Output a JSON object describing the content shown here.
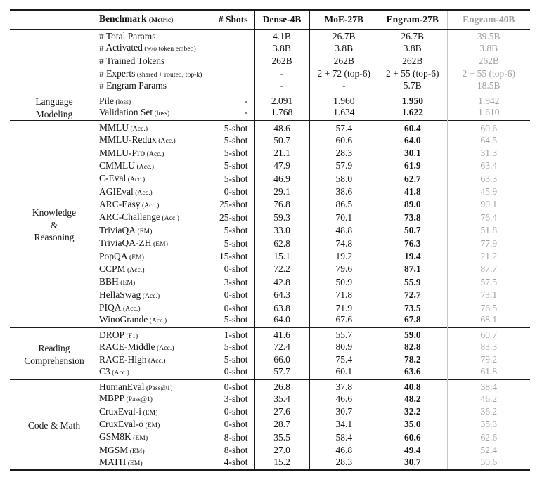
{
  "header": {
    "benchmark_label": "Benchmark",
    "metric_note": "(Metric)",
    "shots_label": "# Shots",
    "models": [
      {
        "name": "Dense-4B"
      },
      {
        "name": "MoE-27B"
      },
      {
        "name": "Engram-27B"
      },
      {
        "name": "Engram-40B",
        "muted": true
      }
    ]
  },
  "sections": [
    {
      "group_lines": [],
      "bold_engram": false,
      "rows": [
        {
          "benchmark": "# Total Params",
          "note": "",
          "shots": "",
          "values": [
            "4.1B",
            "26.7B",
            "26.7B",
            "39.5B"
          ]
        },
        {
          "benchmark": "# Activated",
          "note": "(w/o token embed)",
          "shots": "",
          "values": [
            "3.8B",
            "3.8B",
            "3.8B",
            "3.8B"
          ]
        },
        {
          "benchmark": "# Trained Tokens",
          "note": "",
          "shots": "",
          "values": [
            "262B",
            "262B",
            "262B",
            "262B"
          ]
        },
        {
          "benchmark": "# Experts",
          "note": "(shared + routed, top-k)",
          "shots": "",
          "values": [
            "-",
            "2 + 72 (top-6)",
            "2 + 55 (top-6)",
            "2 + 55 (top-6)"
          ]
        },
        {
          "benchmark": "# Engram Params",
          "note": "",
          "shots": "",
          "values": [
            "-",
            "-",
            "5.7B",
            "18.5B"
          ]
        }
      ]
    },
    {
      "group_lines": [
        "Language",
        "Modeling"
      ],
      "bold_engram": true,
      "rows": [
        {
          "benchmark": "Pile",
          "note": "(loss)",
          "shots": "-",
          "values": [
            "2.091",
            "1.960",
            "1.950",
            "1.942"
          ]
        },
        {
          "benchmark": "Validation Set",
          "note": "(loss)",
          "shots": "-",
          "values": [
            "1.768",
            "1.634",
            "1.622",
            "1.610"
          ]
        }
      ]
    },
    {
      "group_lines": [
        "Knowledge",
        "&",
        "Reasoning"
      ],
      "bold_engram": true,
      "rows": [
        {
          "benchmark": "MMLU",
          "note": "(Acc.)",
          "shots": "5-shot",
          "values": [
            "48.6",
            "57.4",
            "60.4",
            "60.6"
          ]
        },
        {
          "benchmark": "MMLU-Redux",
          "note": "(Acc.)",
          "shots": "5-shot",
          "values": [
            "50.7",
            "60.6",
            "64.0",
            "64.5"
          ]
        },
        {
          "benchmark": "MMLU-Pro",
          "note": "(Acc.)",
          "shots": "5-shot",
          "values": [
            "21.1",
            "28.3",
            "30.1",
            "31.3"
          ]
        },
        {
          "benchmark": "CMMLU",
          "note": "(Acc.)",
          "shots": "5-shot",
          "values": [
            "47.9",
            "57.9",
            "61.9",
            "63.4"
          ]
        },
        {
          "benchmark": "C-Eval",
          "note": "(Acc.)",
          "shots": "5-shot",
          "values": [
            "46.9",
            "58.0",
            "62.7",
            "63.3"
          ]
        },
        {
          "benchmark": "AGIEval",
          "note": "(Acc.)",
          "shots": "0-shot",
          "values": [
            "29.1",
            "38.6",
            "41.8",
            "45.9"
          ]
        },
        {
          "benchmark": "ARC-Easy",
          "note": "(Acc.)",
          "shots": "25-shot",
          "values": [
            "76.8",
            "86.5",
            "89.0",
            "90.1"
          ]
        },
        {
          "benchmark": "ARC-Challenge",
          "note": "(Acc.)",
          "shots": "25-shot",
          "values": [
            "59.3",
            "70.1",
            "73.8",
            "76.4"
          ]
        },
        {
          "benchmark": "TriviaQA",
          "note": "(EM)",
          "shots": "5-shot",
          "values": [
            "33.0",
            "48.8",
            "50.7",
            "51.8"
          ]
        },
        {
          "benchmark": "TriviaQA-ZH",
          "note": "(EM)",
          "shots": "5-shot",
          "values": [
            "62.8",
            "74.8",
            "76.3",
            "77.9"
          ]
        },
        {
          "benchmark": "PopQA",
          "note": "(EM)",
          "shots": "15-shot",
          "values": [
            "15.1",
            "19.2",
            "19.4",
            "21.2"
          ]
        },
        {
          "benchmark": "CCPM",
          "note": "(Acc.)",
          "shots": "0-shot",
          "values": [
            "72.2",
            "79.6",
            "87.1",
            "87.7"
          ]
        },
        {
          "benchmark": "BBH",
          "note": "(EM)",
          "shots": "3-shot",
          "values": [
            "42.8",
            "50.9",
            "55.9",
            "57.5"
          ]
        },
        {
          "benchmark": "HellaSwag",
          "note": "(Acc.)",
          "shots": "0-shot",
          "values": [
            "64.3",
            "71.8",
            "72.7",
            "73.1"
          ]
        },
        {
          "benchmark": "PIQA",
          "note": "(Acc.)",
          "shots": "0-shot",
          "values": [
            "63.8",
            "71.9",
            "73.5",
            "76.5"
          ]
        },
        {
          "benchmark": "WinoGrande",
          "note": "(Acc.)",
          "shots": "5-shot",
          "values": [
            "64.0",
            "67.6",
            "67.8",
            "68.1"
          ]
        }
      ]
    },
    {
      "group_lines": [
        "Reading",
        "Comprehension"
      ],
      "bold_engram": true,
      "rows": [
        {
          "benchmark": "DROP",
          "note": "(F1)",
          "shots": "1-shot",
          "values": [
            "41.6",
            "55.7",
            "59.0",
            "60.7"
          ]
        },
        {
          "benchmark": "RACE-Middle",
          "note": "(Acc.)",
          "shots": "5-shot",
          "values": [
            "72.4",
            "80.9",
            "82.8",
            "83.3"
          ]
        },
        {
          "benchmark": "RACE-High",
          "note": "(Acc.)",
          "shots": "5-shot",
          "values": [
            "66.0",
            "75.4",
            "78.2",
            "79.2"
          ]
        },
        {
          "benchmark": "C3",
          "note": "(Acc.)",
          "shots": "0-shot",
          "values": [
            "57.7",
            "60.1",
            "63.6",
            "61.8"
          ]
        }
      ]
    },
    {
      "group_lines": [
        "Code & Math"
      ],
      "bold_engram": true,
      "rows": [
        {
          "benchmark": "HumanEval",
          "note": "(Pass@1)",
          "shots": "0-shot",
          "values": [
            "26.8",
            "37.8",
            "40.8",
            "38.4"
          ]
        },
        {
          "benchmark": "MBPP",
          "note": "(Pass@1)",
          "shots": "3-shot",
          "values": [
            "35.4",
            "46.6",
            "48.2",
            "46.2"
          ]
        },
        {
          "benchmark": "CruxEval-i",
          "note": "(EM)",
          "shots": "0-shot",
          "values": [
            "27.6",
            "30.7",
            "32.2",
            "36.2"
          ]
        },
        {
          "benchmark": "CruxEval-o",
          "note": "(EM)",
          "shots": "0-shot",
          "values": [
            "28.7",
            "34.1",
            "35.0",
            "35.3"
          ]
        },
        {
          "benchmark": "GSM8K",
          "note": "(EM)",
          "shots": "8-shot",
          "values": [
            "35.5",
            "58.4",
            "60.6",
            "62.6"
          ]
        },
        {
          "benchmark": "MGSM",
          "note": "(EM)",
          "shots": "8-shot",
          "values": [
            "27.0",
            "46.8",
            "49.4",
            "52.4"
          ]
        },
        {
          "benchmark": "MATH",
          "note": "(EM)",
          "shots": "4-shot",
          "values": [
            "15.2",
            "28.3",
            "30.7",
            "30.6"
          ]
        }
      ]
    }
  ],
  "colors": {
    "text": "#131313",
    "muted": "#a0a0a0",
    "rule_dark": "#1a1a1a",
    "rule_light": "#c8c8c8",
    "background": "#ffffff"
  }
}
